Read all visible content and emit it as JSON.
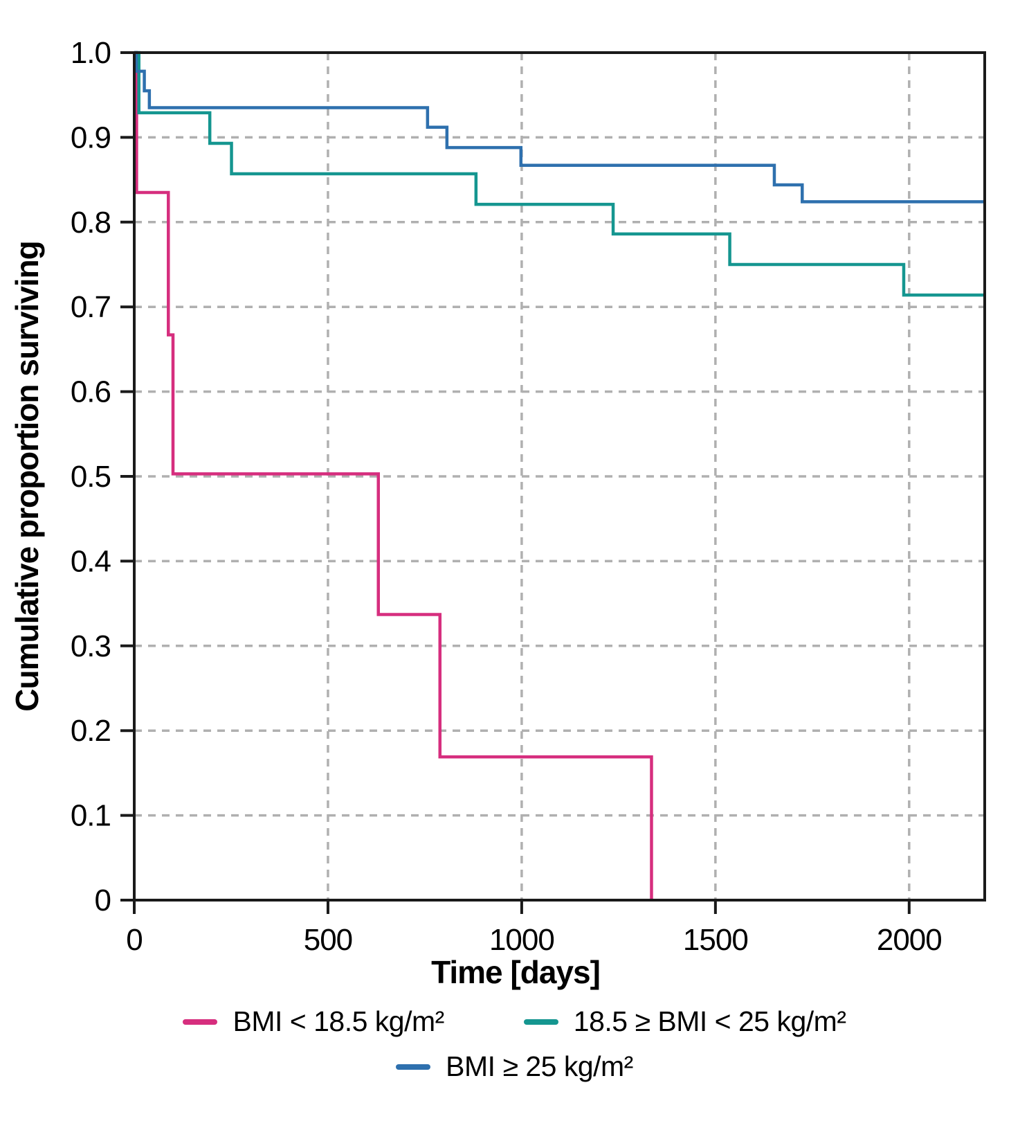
{
  "chart_data": {
    "type": "line",
    "subtype": "kaplan-meier-step",
    "title": "",
    "xlabel": "Time [days]",
    "ylabel": "Cumulative proportion surviving",
    "xlim": [
      0,
      2195
    ],
    "ylim": [
      0,
      1.0
    ],
    "grid": {
      "visible": true,
      "style": "dashed",
      "color": "#b0b0b0"
    },
    "x_ticks": [
      {
        "value": 0,
        "label": "0"
      },
      {
        "value": 500,
        "label": "500"
      },
      {
        "value": 1000,
        "label": "1000"
      },
      {
        "value": 1500,
        "label": "1500"
      },
      {
        "value": 2000,
        "label": "2000"
      }
    ],
    "y_ticks": [
      {
        "value": 0,
        "label": "0"
      },
      {
        "value": 0.1,
        "label": "0.1"
      },
      {
        "value": 0.2,
        "label": "0.2"
      },
      {
        "value": 0.3,
        "label": "0.3"
      },
      {
        "value": 0.4,
        "label": "0.4"
      },
      {
        "value": 0.5,
        "label": "0.5"
      },
      {
        "value": 0.6,
        "label": "0.6"
      },
      {
        "value": 0.7,
        "label": "0.7"
      },
      {
        "value": 0.8,
        "label": "0.8"
      },
      {
        "value": 0.9,
        "label": "0.9"
      },
      {
        "value": 1.0,
        "label": "1.0"
      }
    ],
    "series": [
      {
        "name": "BMI < 18.5 kg/m²",
        "color": "#d62e7e",
        "points": [
          [
            0,
            1.0
          ],
          [
            6,
            0.835
          ],
          [
            88,
            0.667
          ],
          [
            100,
            0.503
          ],
          [
            630,
            0.337
          ],
          [
            789,
            0.169
          ],
          [
            1335,
            0.0
          ]
        ],
        "extend_to": null
      },
      {
        "name": "18.5 ≥ BMI < 25 kg/m²",
        "color": "#159690",
        "points": [
          [
            0,
            1.0
          ],
          [
            12,
            0.929
          ],
          [
            195,
            0.893
          ],
          [
            251,
            0.857
          ],
          [
            882,
            0.821
          ],
          [
            1236,
            0.786
          ],
          [
            1537,
            0.75
          ],
          [
            1986,
            0.714
          ]
        ],
        "extend_to": 2195
      },
      {
        "name": "BMI ≥ 25 kg/m²",
        "color": "#2e70ae",
        "points": [
          [
            0,
            1.0
          ],
          [
            5,
            0.978
          ],
          [
            26,
            0.955
          ],
          [
            39,
            0.935
          ],
          [
            757,
            0.912
          ],
          [
            807,
            0.888
          ],
          [
            998,
            0.867
          ],
          [
            1652,
            0.844
          ],
          [
            1724,
            0.824
          ]
        ],
        "extend_to": 2195
      }
    ],
    "legend": {
      "position": "bottom",
      "rows": [
        [
          0,
          1
        ],
        [
          2
        ]
      ]
    }
  }
}
